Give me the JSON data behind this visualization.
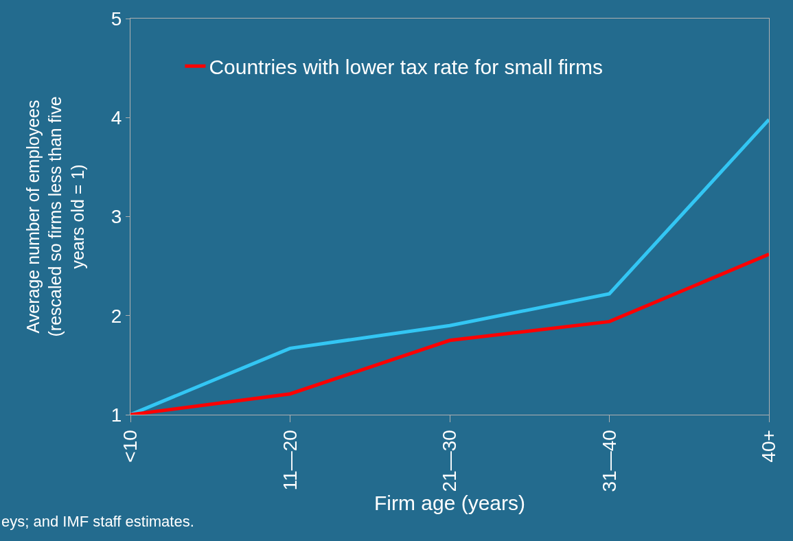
{
  "chart_data": {
    "type": "line",
    "xlabel": "Firm age (years)",
    "ylabel": "Average number of employees\n(rescaled so firms less than five\nyears old = 1)",
    "categories": [
      "<10",
      "11—20",
      "21—30",
      "31—40",
      "40+"
    ],
    "series": [
      {
        "color": "#33c6f4",
        "values": [
          1,
          1.67,
          1.9,
          2.22,
          3.98
        ]
      },
      {
        "name": "Countries with lower tax rate for small firms",
        "color": "#ff0000",
        "values": [
          1,
          1.21,
          1.75,
          1.94,
          2.62
        ]
      }
    ],
    "ylim": [
      1,
      5
    ],
    "yticks": [
      1,
      2,
      3,
      4,
      5
    ],
    "grid": false,
    "legend": "top",
    "marker": "none",
    "line_style": "solid",
    "annotations": [
      "eys; and IMF staff estimates."
    ]
  }
}
